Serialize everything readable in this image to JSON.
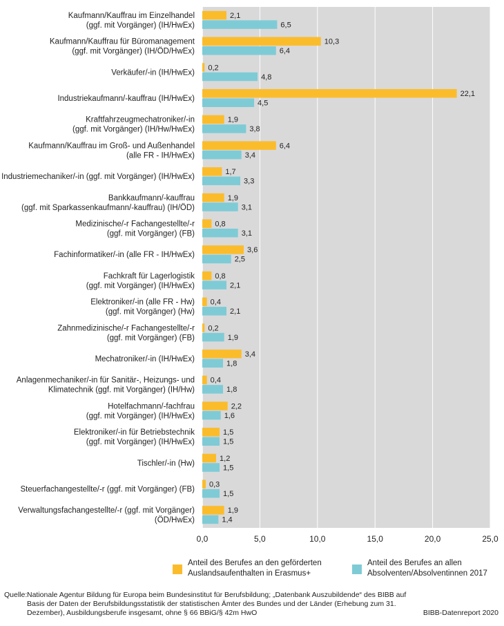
{
  "chart_data": {
    "type": "bar",
    "orientation": "horizontal",
    "categories": [
      [
        "Kaufmann/Kauffrau im Einzelhandel",
        "(ggf. mit Vorgänger) (IH/HwEx)"
      ],
      [
        "Kaufmann/Kauffrau für Büromanagement",
        "(ggf. mit Vorgänger) (IH/ÖD/HwEx)"
      ],
      [
        "Verkäufer/-in (IH/HwEx)"
      ],
      [
        "Industriekaufmann/-kauffrau (IH/HwEx)"
      ],
      [
        "Kraftfahrzeugmechatroniker/-in",
        "(ggf. mit Vorgänger) (IH/Hw/HwEx)"
      ],
      [
        "Kaufmann/Kauffrau im Groß- und Außenhandel",
        "(alle FR - IH/HwEx)"
      ],
      [
        "Industriemechaniker/-in (ggf. mit Vorgänger) (IH/HwEx)"
      ],
      [
        "Bankkaufmann/-kauffrau",
        "(ggf. mit Sparkassenkaufmann/-kauffrau) (IH/ÖD)"
      ],
      [
        "Medizinische/-r Fachangestellte/-r",
        "(ggf. mit Vorgänger) (FB)"
      ],
      [
        "Fachinformatiker/-in (alle FR - IH/HwEx)"
      ],
      [
        "Fachkraft für Lagerlogistik",
        "(ggf. mit Vorgänger) (IH/HwEx)"
      ],
      [
        "Elektroniker/-in (alle FR - Hw)",
        "(ggf. mit Vorgänger) (Hw)"
      ],
      [
        "Zahnmedizinische/-r Fachangestellte/-r",
        "(ggf. mit Vorgänger) (FB)"
      ],
      [
        "Mechatroniker/-in (IH/HwEx)"
      ],
      [
        "Anlagenmechaniker/-in für Sanitär-, Heizungs- und",
        "Klimatechnik (ggf. mit Vorgänger) (IH/Hw)"
      ],
      [
        "Hotelfachmann/-fachfrau",
        "(ggf. mit Vorgänger) (IH/HwEx)"
      ],
      [
        "Elektroniker/-in für Betriebstechnik",
        "(ggf. mit Vorgänger) (IH/HwEx)"
      ],
      [
        "Tischler/-in (Hw)"
      ],
      [
        "Steuerfachangestellte/-r (ggf. mit Vorgänger) (FB)"
      ],
      [
        "Verwaltungsfachangestellte/-r (ggf. mit Vorgänger)",
        "(ÖD/HwEx)"
      ]
    ],
    "series": [
      {
        "name": "Anteil des Berufes an den geförderten Auslandsaufenthalten in Erasmus+",
        "color": "#fbbc2c",
        "values": [
          2.1,
          10.3,
          0.2,
          22.1,
          1.9,
          6.4,
          1.7,
          1.9,
          0.8,
          3.6,
          0.8,
          0.4,
          0.2,
          3.4,
          0.4,
          2.2,
          1.5,
          1.2,
          0.3,
          1.9
        ],
        "labels": [
          "2,1",
          "10,3",
          "0,2",
          "22,1",
          "1,9",
          "6,4",
          "1,7",
          "1,9",
          "0,8",
          "3,6",
          "0,8",
          "0,4",
          "0,2",
          "3,4",
          "0,4",
          "2,2",
          "1,5",
          "1,2",
          "0,3",
          "1,9"
        ]
      },
      {
        "name": "Anteil des Berufes an allen Absolventen/Absolventinnen 2017",
        "color": "#7ecbd6",
        "values": [
          6.5,
          6.4,
          4.8,
          4.5,
          3.8,
          3.4,
          3.3,
          3.1,
          3.1,
          2.5,
          2.1,
          2.1,
          1.9,
          1.8,
          1.8,
          1.6,
          1.5,
          1.5,
          1.5,
          1.4
        ],
        "labels": [
          "6,5",
          "6,4",
          "4,8",
          "4,5",
          "3,8",
          "3,4",
          "3,3",
          "3,1",
          "3,1",
          "2,5",
          "2,1",
          "2,1",
          "1,9",
          "1,8",
          "1,8",
          "1,6",
          "1,5",
          "1,5",
          "1,5",
          "1,4"
        ]
      }
    ],
    "xlim": [
      0,
      25
    ],
    "xticks": [
      0,
      5,
      10,
      15,
      20,
      25
    ],
    "xtick_labels": [
      "0,0",
      "5,0",
      "10,0",
      "15,0",
      "20,0",
      "25,0"
    ],
    "grid": true,
    "panel_bg": "#d9d9da",
    "legend_position": "bottom"
  },
  "legend": {
    "a": "Anteil des Berufes an den geförderten Auslandsaufenthalten in Erasmus+",
    "b": "Anteil des Berufes an allen Absolventen/Absolventinnen 2017"
  },
  "source": {
    "label": "Quelle:",
    "text": "Nationale Agentur Bildung für Europa beim Bundesinstitut für Berufsbildung; „Datenbank Auszubildende“ des BIBB auf Basis der Daten der Berufsbildungsstatistik der statistischen Ämter des Bundes und der Länder (Erhebung zum 31. Dezember), Ausbildungsberufe insgesamt, ohne § 66 BBiG/§ 42m HwO"
  },
  "footer": "BIBB-Datenreport 2020"
}
